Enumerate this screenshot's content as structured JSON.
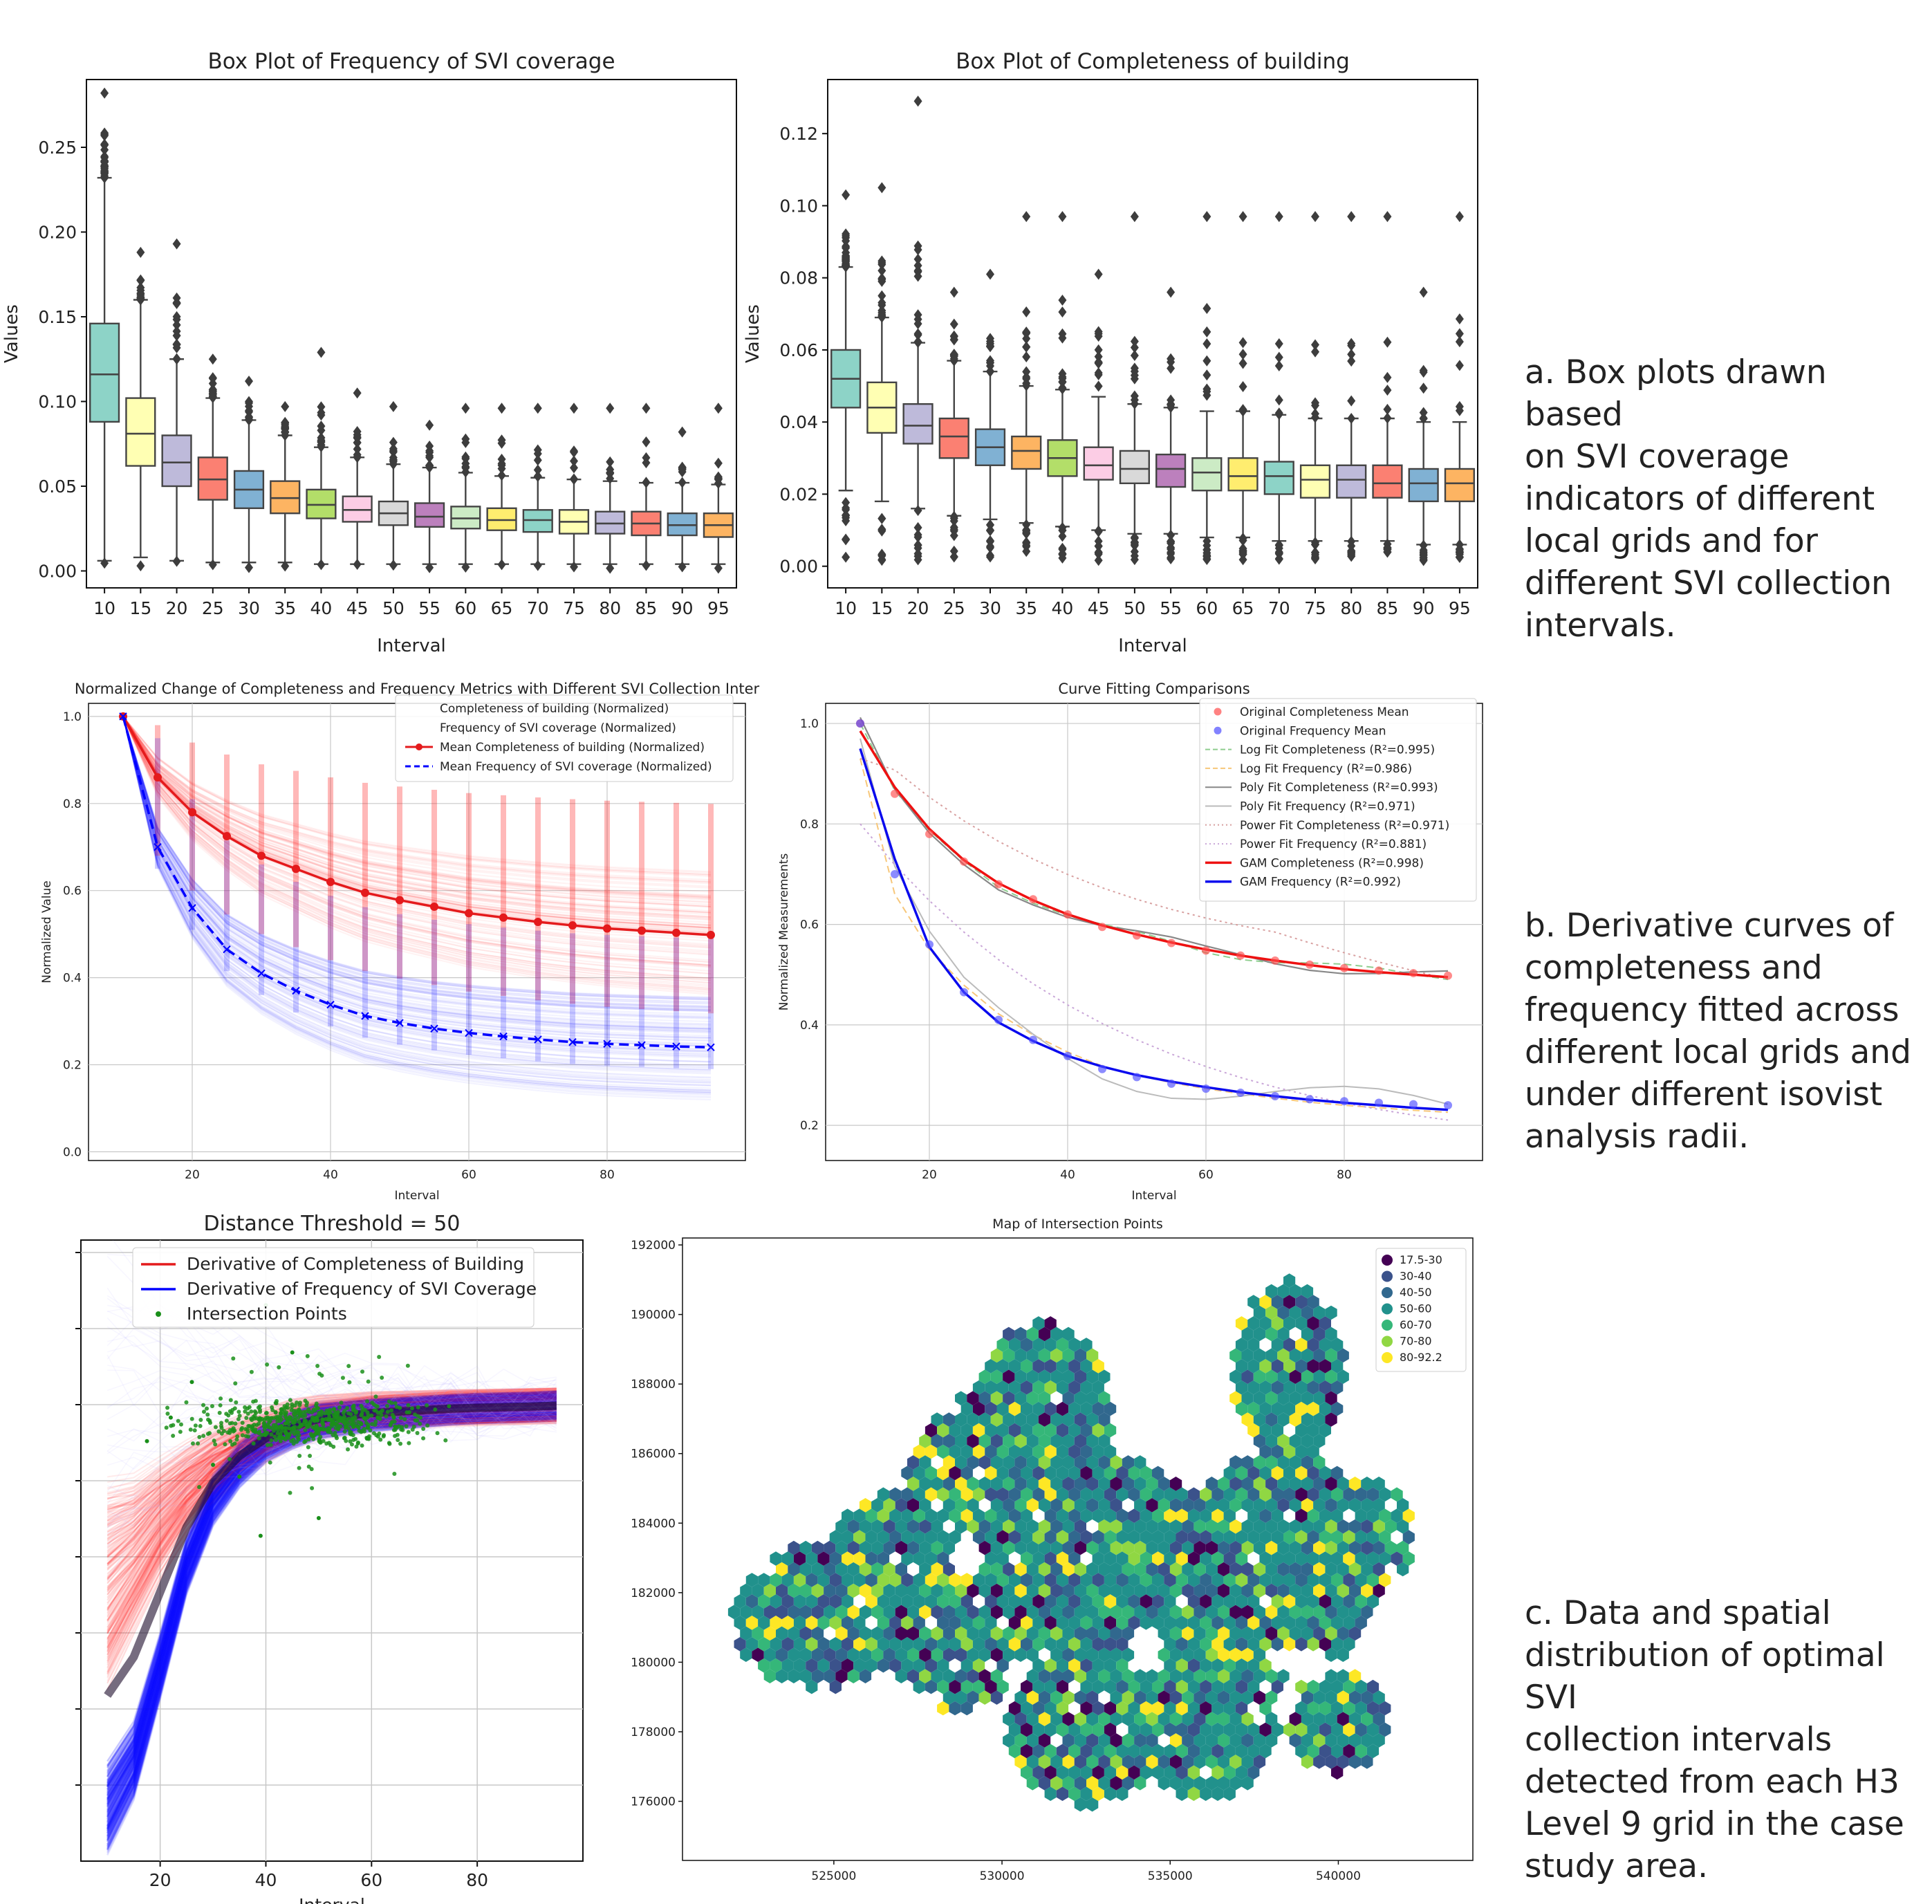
{
  "captions": {
    "a": "a. Box plots drawn based\non  SVI coverage\nindicators of different\nlocal grids and for\ndifferent SVI collection\nintervals.",
    "b": "b. Derivative curves of\ncompleteness and\nfrequency fitted across\ndifferent local grids and\nunder different isovist\nanalysis radii.",
    "c": "c. Data and spatial\ndistribution of optimal SVI\ncollection intervals\ndetected from each H3\nLevel 9 grid in the case\nstudy area."
  },
  "colors": {
    "box_palette": [
      "#8dd3c7",
      "#ffffb3",
      "#bebada",
      "#fb8072",
      "#80b1d3",
      "#fdb462",
      "#b3de69",
      "#fccde5",
      "#d9d9d9",
      "#bc80bd",
      "#ccebc5",
      "#ffed6f",
      "#8dd3c7",
      "#ffffb3",
      "#bebada",
      "#fb8072",
      "#80b1d3",
      "#fdb462"
    ],
    "red": "#e41a1c",
    "blue": "#0000ff",
    "green": "#1a8f1a",
    "viridis": [
      "#440154",
      "#3b528b",
      "#31688e",
      "#21918c",
      "#35b779",
      "#90d743",
      "#fde725"
    ]
  },
  "chart_data": [
    {
      "type": "box",
      "title": "Box Plot of Frequency of SVI coverage",
      "xlabel": "Interval",
      "ylabel": "Values",
      "ylim": [
        -0.01,
        0.29
      ],
      "yticks": [
        0.0,
        0.05,
        0.1,
        0.15,
        0.2,
        0.25
      ],
      "ytick_labels": [
        "0.00",
        "0.05",
        "0.10",
        "0.15",
        "0.20",
        "0.25"
      ],
      "categories": [
        "10",
        "15",
        "20",
        "25",
        "30",
        "35",
        "40",
        "45",
        "50",
        "55",
        "60",
        "65",
        "70",
        "75",
        "80",
        "85",
        "90",
        "95"
      ],
      "q1": [
        0.088,
        0.062,
        0.05,
        0.042,
        0.037,
        0.034,
        0.031,
        0.029,
        0.027,
        0.026,
        0.025,
        0.024,
        0.023,
        0.022,
        0.022,
        0.021,
        0.021,
        0.02
      ],
      "median": [
        0.116,
        0.081,
        0.064,
        0.054,
        0.048,
        0.043,
        0.039,
        0.036,
        0.034,
        0.032,
        0.031,
        0.03,
        0.03,
        0.029,
        0.028,
        0.028,
        0.027,
        0.027
      ],
      "q3": [
        0.146,
        0.102,
        0.08,
        0.067,
        0.059,
        0.053,
        0.048,
        0.044,
        0.041,
        0.04,
        0.038,
        0.037,
        0.036,
        0.036,
        0.035,
        0.035,
        0.034,
        0.034
      ],
      "whisker_low": [
        0.006,
        0.008,
        0.006,
        0.005,
        0.005,
        0.005,
        0.004,
        0.004,
        0.004,
        0.004,
        0.004,
        0.004,
        0.004,
        0.004,
        0.004,
        0.004,
        0.004,
        0.004
      ],
      "whisker_high": [
        0.232,
        0.16,
        0.125,
        0.102,
        0.089,
        0.08,
        0.073,
        0.067,
        0.063,
        0.061,
        0.058,
        0.056,
        0.055,
        0.054,
        0.053,
        0.052,
        0.052,
        0.051
      ],
      "outliers_max": [
        0.282,
        0.188,
        0.193,
        0.125,
        0.112,
        0.097,
        0.129,
        0.105,
        0.097,
        0.086,
        0.096,
        0.096,
        0.096,
        0.096,
        0.096,
        0.096,
        0.082,
        0.096
      ]
    },
    {
      "type": "box",
      "title": "Box Plot of Completeness of building",
      "xlabel": "Interval",
      "ylabel": "Values",
      "ylim": [
        -0.006,
        0.135
      ],
      "yticks": [
        0.0,
        0.02,
        0.04,
        0.06,
        0.08,
        0.1,
        0.12
      ],
      "ytick_labels": [
        "0.00",
        "0.02",
        "0.04",
        "0.06",
        "0.08",
        "0.10",
        "0.12"
      ],
      "categories": [
        "10",
        "15",
        "20",
        "25",
        "30",
        "35",
        "40",
        "45",
        "50",
        "55",
        "60",
        "65",
        "70",
        "75",
        "80",
        "85",
        "90",
        "95"
      ],
      "q1": [
        0.044,
        0.037,
        0.034,
        0.03,
        0.028,
        0.027,
        0.025,
        0.024,
        0.023,
        0.022,
        0.021,
        0.021,
        0.02,
        0.019,
        0.019,
        0.019,
        0.018,
        0.018
      ],
      "median": [
        0.052,
        0.044,
        0.039,
        0.036,
        0.033,
        0.032,
        0.03,
        0.028,
        0.027,
        0.027,
        0.026,
        0.025,
        0.025,
        0.024,
        0.024,
        0.023,
        0.023,
        0.023
      ],
      "q3": [
        0.06,
        0.051,
        0.045,
        0.041,
        0.038,
        0.036,
        0.035,
        0.033,
        0.032,
        0.031,
        0.03,
        0.03,
        0.029,
        0.028,
        0.028,
        0.028,
        0.027,
        0.027
      ],
      "whisker_low": [
        0.021,
        0.018,
        0.016,
        0.014,
        0.013,
        0.012,
        0.011,
        0.01,
        0.009,
        0.009,
        0.008,
        0.008,
        0.007,
        0.007,
        0.007,
        0.007,
        0.006,
        0.006
      ],
      "whisker_high": [
        0.083,
        0.069,
        0.062,
        0.057,
        0.054,
        0.05,
        0.049,
        0.047,
        0.045,
        0.044,
        0.043,
        0.043,
        0.042,
        0.041,
        0.041,
        0.041,
        0.04,
        0.04
      ],
      "outliers_max": [
        0.103,
        0.105,
        0.129,
        0.076,
        0.081,
        0.097,
        0.097,
        0.081,
        0.097,
        0.076,
        0.097,
        0.097,
        0.097,
        0.097,
        0.097,
        0.097,
        0.076,
        0.097
      ]
    },
    {
      "type": "line",
      "title": "Normalized Change of Completeness and Frequency Metrics with Different SVI Collection Inter",
      "xlabel": "Interval",
      "ylabel": "Normalized Value",
      "xlim": [
        5,
        100
      ],
      "ylim": [
        -0.02,
        1.03
      ],
      "xticks": [
        20,
        40,
        60,
        80
      ],
      "yticks": [
        0.0,
        0.2,
        0.4,
        0.6,
        0.8,
        1.0
      ],
      "ytick_labels": [
        "0.0",
        "0.2",
        "0.4",
        "0.6",
        "0.8",
        "1.0"
      ],
      "x": [
        10,
        15,
        20,
        25,
        30,
        35,
        40,
        45,
        50,
        55,
        60,
        65,
        70,
        75,
        80,
        85,
        90,
        95
      ],
      "series": [
        {
          "name": "Mean Completeness of building (Normalized)",
          "color": "#e41a1c",
          "values": [
            1.0,
            0.86,
            0.78,
            0.725,
            0.68,
            0.65,
            0.62,
            0.595,
            0.578,
            0.563,
            0.548,
            0.538,
            0.528,
            0.52,
            0.513,
            0.508,
            0.503,
            0.498
          ]
        },
        {
          "name": "Mean Frequency of SVI coverage (Normalized)",
          "color": "#0000ff",
          "values": [
            1.0,
            0.7,
            0.56,
            0.465,
            0.41,
            0.37,
            0.338,
            0.312,
            0.296,
            0.283,
            0.273,
            0.265,
            0.258,
            0.252,
            0.248,
            0.245,
            0.242,
            0.24
          ]
        }
      ],
      "legend": [
        "Completeness of building (Normalized)",
        "Frequency of SVI coverage (Normalized)",
        "Mean Completeness of building (Normalized)",
        "Mean Frequency of SVI coverage (Normalized)"
      ],
      "legend_loc": "upper right"
    },
    {
      "type": "line",
      "title": "Curve Fitting Comparisons",
      "xlabel": "Interval",
      "ylabel": "Normalized Measurements",
      "xlim": [
        5,
        100
      ],
      "ylim": [
        0.13,
        1.04
      ],
      "xticks": [
        20,
        40,
        60,
        80
      ],
      "yticks": [
        0.2,
        0.4,
        0.6,
        0.8,
        1.0
      ],
      "ytick_labels": [
        "0.2",
        "0.4",
        "0.6",
        "0.8",
        "1.0"
      ],
      "x": [
        10,
        15,
        20,
        25,
        30,
        35,
        40,
        45,
        50,
        55,
        60,
        65,
        70,
        75,
        80,
        85,
        90,
        95
      ],
      "completeness_mean": [
        1.0,
        0.86,
        0.78,
        0.725,
        0.68,
        0.65,
        0.62,
        0.595,
        0.578,
        0.563,
        0.548,
        0.538,
        0.528,
        0.52,
        0.513,
        0.508,
        0.503,
        0.498
      ],
      "frequency_mean": [
        1.0,
        0.7,
        0.56,
        0.465,
        0.41,
        0.37,
        0.338,
        0.312,
        0.296,
        0.283,
        0.273,
        0.265,
        0.258,
        0.252,
        0.248,
        0.245,
        0.242,
        0.24
      ],
      "gam_completeness": [
        0.985,
        0.873,
        0.79,
        0.728,
        0.682,
        0.648,
        0.62,
        0.598,
        0.58,
        0.564,
        0.55,
        0.538,
        0.528,
        0.519,
        0.511,
        0.505,
        0.5,
        0.495
      ],
      "gam_frequency": [
        0.95,
        0.73,
        0.555,
        0.465,
        0.405,
        0.368,
        0.338,
        0.317,
        0.3,
        0.287,
        0.276,
        0.266,
        0.258,
        0.251,
        0.245,
        0.24,
        0.235,
        0.231
      ],
      "legend": [
        "Original Completeness Mean",
        "Original Frequency Mean",
        "Log Fit Completeness (R²=0.995)",
        "Log Fit Frequency (R²=0.986)",
        "Poly Fit Completeness (R²=0.993)",
        "Poly Fit Frequency (R²=0.971)",
        "Power Fit Completeness (R²=0.971)",
        "Power Fit Frequency (R²=0.881)",
        "GAM Completeness (R²=0.998)",
        "GAM Frequency (R²=0.992)"
      ]
    },
    {
      "type": "line",
      "title": "Distance Threshold = 50",
      "xlabel": "Interval",
      "ylabel": "",
      "xlim": [
        5,
        100
      ],
      "ylim": [
        -0.05,
        1.0
      ],
      "xticks": [
        20,
        40,
        60,
        80
      ],
      "legend": [
        "Derivative of Completeness of Building",
        "Derivative of Frequency of SVI Coverage",
        "Intersection Points"
      ],
      "x": [
        10,
        15,
        20,
        25,
        30,
        35,
        40,
        45,
        50,
        55,
        60,
        65,
        70,
        75,
        80,
        85,
        90,
        95
      ],
      "completeness_derivative": [
        0.42,
        0.47,
        0.53,
        0.58,
        0.62,
        0.65,
        0.67,
        0.69,
        0.7,
        0.705,
        0.71,
        0.712,
        0.714,
        0.716,
        0.717,
        0.718,
        0.719,
        0.72
      ],
      "frequency_derivative": [
        0.04,
        0.12,
        0.28,
        0.45,
        0.56,
        0.62,
        0.66,
        0.68,
        0.695,
        0.7,
        0.705,
        0.708,
        0.711,
        0.714,
        0.716,
        0.717,
        0.718,
        0.72
      ]
    },
    {
      "type": "scatter",
      "title": "Map of Intersection Points",
      "xlim": [
        520500,
        544000
      ],
      "ylim": [
        174300,
        192200
      ],
      "xticks": [
        525000,
        530000,
        535000,
        540000
      ],
      "xtick_labels": [
        "525000",
        "530000",
        "535000",
        "540000"
      ],
      "yticks": [
        176000,
        178000,
        180000,
        182000,
        184000,
        186000,
        188000,
        190000,
        192000
      ],
      "ytick_labels": [
        "176000",
        "178000",
        "180000",
        "182000",
        "184000",
        "186000",
        "188000",
        "190000",
        "192000"
      ],
      "legend": [
        "17.5-30",
        "30-40",
        "40-50",
        "50-60",
        "60-70",
        "70-80",
        "80-92.2"
      ],
      "legend_loc": "upper right"
    }
  ]
}
